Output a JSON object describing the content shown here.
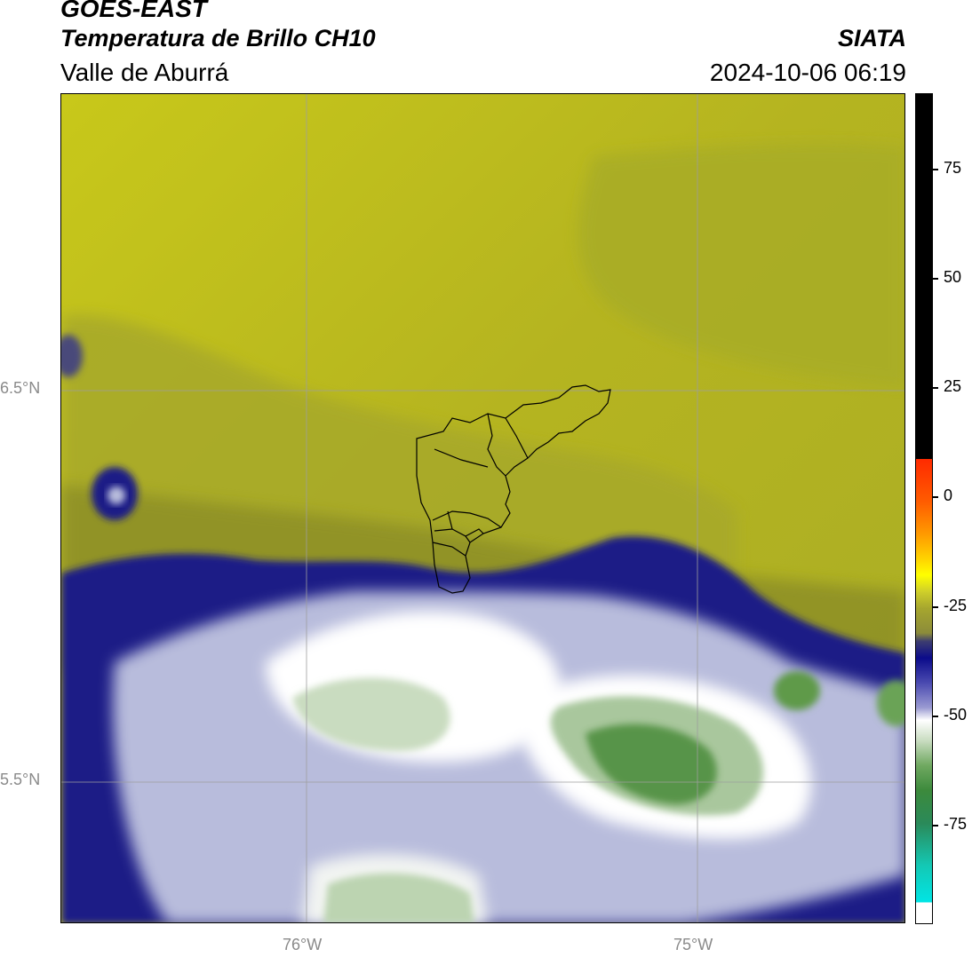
{
  "header": {
    "satellite": "GOES-EAST",
    "product": "Temperatura de Brillo CH10",
    "organization": "SIATA",
    "region": "Valle de Aburrá",
    "datetime": "2024-10-06 06:19"
  },
  "map": {
    "lat_labels": [
      "6.5°N",
      "5.5°N"
    ],
    "lon_labels": [
      "76°W",
      "75°W"
    ],
    "gridline_color": "#9e9e9e",
    "border_color": "#000000",
    "palette": {
      "cold_green": "#4f8f3f",
      "pale_green": "#c9dcc0",
      "white": "#ffffff",
      "lavender": "#b8bcdc",
      "navy": "#1c1f86",
      "olive_dark": "#8f9128",
      "olive": "#a9ad26",
      "yellow": "#c8c81a"
    }
  },
  "colorbar": {
    "ticks": [
      "75",
      "50",
      "25",
      "0",
      "-25",
      "-50",
      "-75"
    ],
    "colors": {
      "black": "#000000",
      "red": "#ff2a00",
      "orange": "#ff9900",
      "yellow": "#ffff00",
      "olive": "#a6a62e",
      "navy": "#0b0b8a",
      "white": "#ffffff",
      "green": "#3c8a3c",
      "cyan": "#00e5e5"
    }
  }
}
